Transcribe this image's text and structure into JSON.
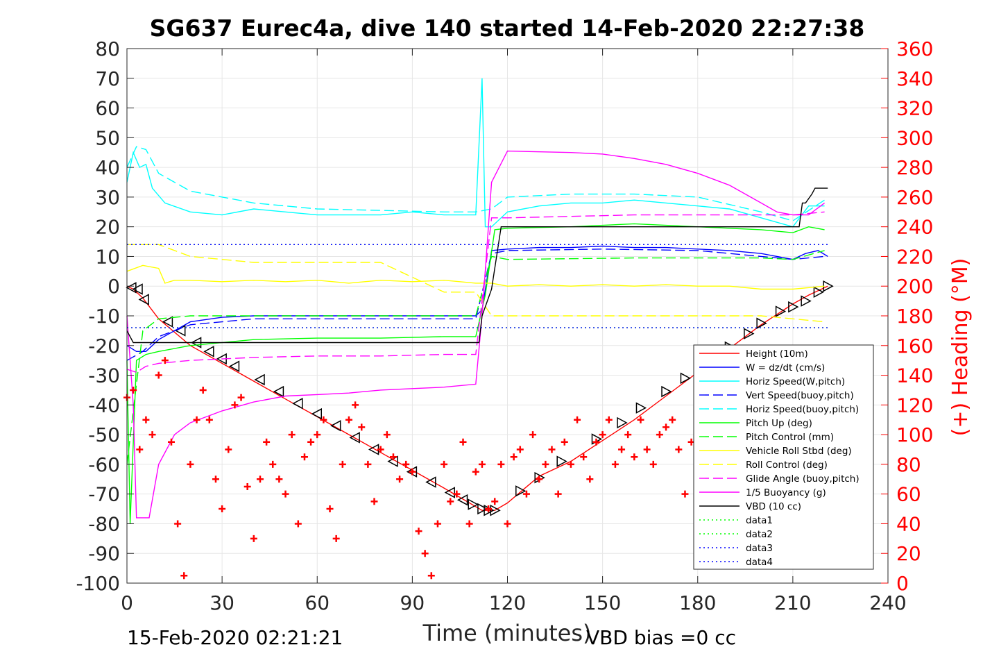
{
  "chart_data": {
    "type": "line",
    "title": "SG637 Eurec4a, dive 140 started 14-Feb-2020 22:27:38",
    "xlabel": "Time (minutes)",
    "ylabel_right": "(+) Heading (°M)",
    "xlim": [
      0,
      240
    ],
    "ylim_left": [
      -100,
      80
    ],
    "ylim_right": [
      0,
      360
    ],
    "x_ticks": [
      "0",
      "30",
      "60",
      "90",
      "120",
      "150",
      "180",
      "210",
      "240"
    ],
    "y_ticks_left": [
      "-100",
      "-90",
      "-80",
      "-70",
      "-60",
      "-50",
      "-40",
      "-30",
      "-20",
      "-10",
      "0",
      "10",
      "20",
      "30",
      "40",
      "50",
      "60",
      "70",
      "80"
    ],
    "y_ticks_right": [
      "0",
      "20",
      "40",
      "60",
      "80",
      "100",
      "120",
      "140",
      "160",
      "180",
      "200",
      "220",
      "240",
      "260",
      "280",
      "300",
      "320",
      "340",
      "360"
    ],
    "grid": true,
    "legend_position": "right-middle",
    "footer_left": "15-Feb-2020 02:21:21",
    "footer_right": "VBD bias =0 cc",
    "legend": [
      {
        "name": "Height (10m)",
        "color": "#ff0000",
        "style": "solid"
      },
      {
        "name": "W = dz/dt (cm/s)",
        "color": "#0000ff",
        "style": "solid"
      },
      {
        "name": "Horiz Speed(W,pitch)",
        "color": "#00ffff",
        "style": "solid"
      },
      {
        "name": "Vert Speed(buoy,pitch)",
        "color": "#0000ff",
        "style": "dashed"
      },
      {
        "name": "Horiz Speed(buoy,pitch)",
        "color": "#00ffff",
        "style": "dashed"
      },
      {
        "name": "Pitch Up (deg)",
        "color": "#00ff00",
        "style": "solid"
      },
      {
        "name": "Pitch Control (mm)",
        "color": "#00ff00",
        "style": "dashed"
      },
      {
        "name": "Vehicle Roll Stbd (deg)",
        "color": "#ffff00",
        "style": "solid"
      },
      {
        "name": "Roll Control (deg)",
        "color": "#ffff00",
        "style": "dashed"
      },
      {
        "name": "Glide Angle (buoy,pitch)",
        "color": "#ff00ff",
        "style": "dashed"
      },
      {
        "name": "1/5 Buoyancy (g)",
        "color": "#ff00ff",
        "style": "solid"
      },
      {
        "name": "VBD (10 cc)",
        "color": "#000000",
        "style": "solid"
      },
      {
        "name": "data1",
        "color": "#00ff00",
        "style": "dotted"
      },
      {
        "name": "data2",
        "color": "#00ff00",
        "style": "dotted"
      },
      {
        "name": "data3",
        "color": "#0000ff",
        "style": "dotted"
      },
      {
        "name": "data4",
        "color": "#0000ff",
        "style": "dotted"
      }
    ],
    "series": [
      {
        "name": "Height (10m)",
        "color": "#ff0000",
        "style": "solid",
        "axis": "left",
        "x": [
          0,
          2,
          5,
          10,
          20,
          30,
          40,
          50,
          60,
          70,
          80,
          90,
          100,
          108,
          112,
          116,
          120,
          130,
          140,
          150,
          160,
          170,
          180,
          190,
          200,
          210,
          215,
          221
        ],
        "y": [
          0,
          -1,
          -4,
          -11,
          -20,
          -26,
          -32,
          -38,
          -44,
          -50,
          -56,
          -62,
          -68,
          -73,
          -75.5,
          -75.5,
          -73,
          -64,
          -59,
          -52,
          -45,
          -37,
          -29,
          -21,
          -13,
          -6,
          -3,
          0
        ]
      },
      {
        "name": "Height markers",
        "color": "#000000",
        "style": "triangles",
        "axis": "left",
        "x": [
          1.5,
          3.5,
          5.5,
          13,
          17,
          22,
          26,
          30,
          34,
          42,
          48,
          54,
          60,
          66,
          72,
          78,
          84,
          90,
          96,
          102,
          106,
          109,
          112,
          114,
          116,
          124,
          130,
          137,
          148,
          156,
          162,
          170,
          176,
          184,
          190,
          196,
          200,
          206,
          210,
          214,
          218,
          221
        ],
        "y": [
          -0.5,
          -1,
          -4.5,
          -12,
          -15,
          -19,
          -22,
          -24.5,
          -27,
          -31.5,
          -35.5,
          -39.5,
          -43,
          -47,
          -51,
          -55,
          -59,
          -62.5,
          -66,
          -69.5,
          -72,
          -73.5,
          -75,
          -75.5,
          -75.5,
          -69,
          -64.5,
          -59,
          -51.5,
          -46,
          -41,
          -35.5,
          -31,
          -24,
          -20.5,
          -16,
          -12.5,
          -8.5,
          -7,
          -5,
          -2,
          0
        ]
      },
      {
        "name": "W = dz/dt (cm/s)",
        "color": "#0000ff",
        "style": "solid",
        "axis": "left",
        "x": [
          0,
          3,
          6,
          10,
          15,
          20,
          30,
          40,
          50,
          60,
          70,
          80,
          90,
          100,
          110,
          112,
          115,
          120,
          130,
          140,
          150,
          160,
          170,
          180,
          190,
          200,
          210,
          214,
          218,
          221
        ],
        "y": [
          -20,
          -22,
          -22,
          -18,
          -15,
          -12,
          -10.5,
          -10,
          -10,
          -10,
          -10,
          -10,
          -10,
          -10,
          -10,
          -8,
          12,
          12.5,
          13,
          13,
          13.5,
          13,
          13,
          12.5,
          12,
          11,
          9,
          11,
          12,
          10
        ]
      },
      {
        "name": "Horiz Speed(W,pitch)",
        "color": "#00ffff",
        "style": "solid",
        "axis": "left",
        "x": [
          0,
          2,
          4,
          6,
          8,
          12,
          20,
          30,
          40,
          50,
          60,
          70,
          80,
          90,
          100,
          110,
          112,
          113,
          115,
          120,
          130,
          140,
          150,
          160,
          170,
          180,
          190,
          200,
          210,
          215,
          220
        ],
        "y": [
          35,
          45,
          40,
          41,
          33,
          28,
          25,
          24,
          26,
          25,
          24,
          24,
          24,
          25,
          24,
          24,
          70,
          20,
          20,
          25,
          27,
          28,
          28,
          29,
          28,
          27,
          26,
          23,
          20,
          27,
          27
        ]
      },
      {
        "name": "Vert Speed(buoy,pitch)",
        "color": "#0000ff",
        "style": "dashed",
        "axis": "left",
        "x": [
          0,
          5,
          10,
          20,
          40,
          60,
          80,
          100,
          110,
          115,
          120,
          150,
          180,
          200,
          210,
          220
        ],
        "y": [
          -25,
          -22,
          -17,
          -13,
          -11,
          -11,
          -11,
          -11,
          -11,
          11,
          12,
          12.5,
          12,
          10,
          9,
          10
        ]
      },
      {
        "name": "Horiz Speed(buoy,pitch)",
        "color": "#00ffff",
        "style": "dashed",
        "axis": "left",
        "x": [
          0,
          3,
          6,
          10,
          20,
          40,
          60,
          80,
          100,
          110,
          115,
          120,
          140,
          160,
          180,
          200,
          210,
          220
        ],
        "y": [
          40,
          47,
          46,
          38,
          32,
          28,
          26,
          25.5,
          25,
          25,
          26,
          30,
          31,
          31,
          30,
          25,
          22,
          29
        ]
      },
      {
        "name": "Pitch Up (deg)",
        "color": "#00ff00",
        "style": "solid",
        "axis": "left",
        "x": [
          0,
          1,
          3,
          6,
          10,
          20,
          40,
          60,
          80,
          100,
          110,
          113,
          116,
          120,
          140,
          160,
          180,
          200,
          210,
          215,
          220
        ],
        "y": [
          -25,
          -80,
          -25,
          -23,
          -22,
          -20,
          -18,
          -17.5,
          -17.5,
          -17,
          -17,
          -3,
          19,
          19.5,
          20,
          21,
          20,
          19,
          18,
          20,
          19
        ]
      },
      {
        "name": "Pitch Control (mm)",
        "color": "#00ff00",
        "style": "dashed",
        "axis": "left",
        "x": [
          0,
          5,
          10,
          20,
          60,
          100,
          110,
          115,
          120,
          160,
          200,
          210,
          220
        ],
        "y": [
          -60,
          -15,
          -11,
          -10,
          -10,
          -10,
          -10,
          10,
          9,
          9.5,
          9.5,
          9,
          12
        ]
      },
      {
        "name": "Vehicle Roll Stbd (deg)",
        "color": "#ffff00",
        "style": "solid",
        "axis": "left",
        "x": [
          0,
          5,
          10,
          12,
          15,
          20,
          30,
          40,
          50,
          60,
          70,
          80,
          90,
          100,
          110,
          115,
          120,
          130,
          140,
          150,
          160,
          170,
          180,
          190,
          200,
          210,
          220
        ],
        "y": [
          5,
          7,
          6,
          1,
          2,
          2,
          1.5,
          2,
          1.5,
          2,
          1,
          2,
          1.5,
          2,
          1,
          1,
          0,
          0.5,
          0,
          0.5,
          0,
          0.5,
          0,
          0,
          -1,
          -1,
          0
        ]
      },
      {
        "name": "Roll Control (deg)",
        "color": "#ffff00",
        "style": "dashed",
        "axis": "left",
        "x": [
          0,
          5,
          10,
          20,
          40,
          60,
          80,
          100,
          110,
          115,
          120,
          140,
          160,
          180,
          200,
          220
        ],
        "y": [
          14,
          14,
          14,
          10,
          8,
          8,
          8,
          -2,
          -2,
          -10,
          -10,
          -10,
          -10,
          -10,
          -10,
          -12
        ]
      },
      {
        "name": "Glide Angle (buoy,pitch)",
        "color": "#ff00ff",
        "style": "dashed",
        "axis": "left",
        "x": [
          0,
          3,
          6,
          10,
          20,
          40,
          60,
          80,
          100,
          110,
          115,
          120,
          140,
          160,
          180,
          200,
          210,
          220
        ],
        "y": [
          -28,
          -29,
          -27,
          -26,
          -25,
          -24,
          -23.5,
          -23.5,
          -23,
          -23,
          23,
          23,
          23.5,
          24,
          24,
          24,
          24,
          25
        ]
      },
      {
        "name": "1/5 Buoyancy (g)",
        "color": "#ff00ff",
        "style": "solid",
        "axis": "left",
        "x": [
          0,
          2,
          3,
          7,
          10,
          15,
          20,
          30,
          40,
          50,
          60,
          70,
          80,
          90,
          100,
          110,
          112,
          115,
          120,
          140,
          150,
          160,
          170,
          180,
          190,
          200,
          205,
          210,
          215,
          220
        ],
        "y": [
          -10,
          -40,
          -78,
          -78,
          -60,
          -50,
          -46,
          -42,
          -39,
          -37,
          -36.5,
          -36,
          -35,
          -34.5,
          -34,
          -33,
          -10,
          35,
          45.5,
          45,
          44.5,
          43,
          41,
          38,
          34,
          28,
          25,
          24,
          24,
          28
        ]
      },
      {
        "name": "VBD (10 cc)",
        "color": "#000000",
        "style": "solid",
        "axis": "left",
        "x": [
          0,
          2,
          4,
          20,
          60,
          100,
          111,
          112,
          115,
          118,
          140,
          180,
          200,
          210,
          212,
          213,
          214,
          216,
          217,
          221
        ],
        "y": [
          -15,
          -19,
          -19,
          -19,
          -19,
          -19,
          -19,
          -10,
          -1,
          20,
          20,
          20,
          20,
          20,
          20,
          28,
          28,
          31,
          33,
          33
        ]
      },
      {
        "name": "data1",
        "color": "#00ff00",
        "style": "dotted",
        "axis": "left",
        "x": [
          0,
          221
        ],
        "y": [
          14,
          14
        ]
      },
      {
        "name": "data2",
        "color": "#00ff00",
        "style": "dotted",
        "axis": "left",
        "x": [
          0,
          221
        ],
        "y": [
          -14,
          -14
        ]
      },
      {
        "name": "data3",
        "color": "#0000ff",
        "style": "dotted",
        "axis": "left",
        "x": [
          0,
          221
        ],
        "y": [
          14,
          14
        ]
      },
      {
        "name": "data4",
        "color": "#0000ff",
        "style": "dotted",
        "axis": "left",
        "x": [
          0,
          221
        ],
        "y": [
          -14,
          -14
        ]
      },
      {
        "name": "Heading",
        "color": "#ff0000",
        "style": "plus",
        "axis": "right",
        "x": [
          0,
          2,
          4,
          6,
          8,
          10,
          12,
          14,
          16,
          18,
          20,
          22,
          24,
          26,
          28,
          30,
          32,
          34,
          36,
          38,
          40,
          42,
          44,
          46,
          48,
          50,
          52,
          54,
          56,
          58,
          60,
          62,
          64,
          66,
          68,
          70,
          72,
          74,
          76,
          78,
          80,
          82,
          84,
          86,
          88,
          90,
          92,
          94,
          96,
          98,
          100,
          102,
          104,
          106,
          108,
          110,
          112,
          114,
          116,
          118,
          120,
          122,
          124,
          126,
          128,
          130,
          132,
          134,
          136,
          138,
          140,
          142,
          144,
          146,
          148,
          150,
          152,
          154,
          156,
          158,
          160,
          162,
          164,
          166,
          168,
          170,
          172,
          174,
          176,
          178,
          180
        ],
        "y": [
          125,
          130,
          90,
          110,
          100,
          140,
          150,
          95,
          40,
          5,
          80,
          110,
          130,
          110,
          70,
          50,
          90,
          120,
          125,
          65,
          30,
          70,
          95,
          80,
          70,
          60,
          100,
          40,
          85,
          95,
          100,
          110,
          50,
          30,
          80,
          110,
          120,
          105,
          80,
          55,
          90,
          100,
          85,
          70,
          80,
          75,
          35,
          20,
          5,
          40,
          80,
          55,
          60,
          95,
          40,
          75,
          80,
          50,
          55,
          80,
          40,
          85,
          90,
          60,
          100,
          70,
          80,
          90,
          60,
          95,
          80,
          110,
          85,
          70,
          95,
          100,
          110,
          80,
          90,
          100,
          85,
          110,
          90,
          80,
          100,
          105,
          110,
          90,
          60,
          95,
          110
        ]
      }
    ]
  }
}
